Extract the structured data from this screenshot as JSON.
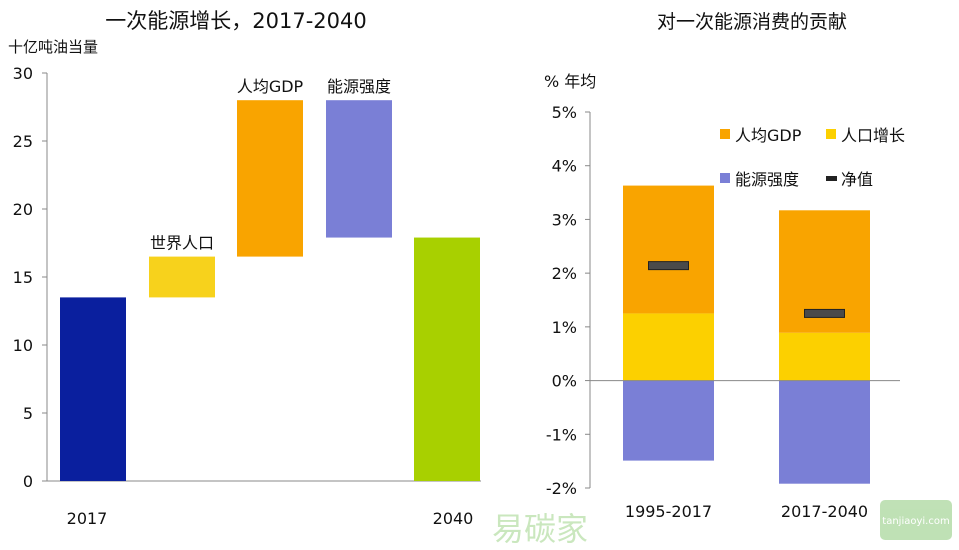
{
  "chart_data": [
    {
      "type": "bar",
      "subtype": "waterfall",
      "title": "一次能源增长，2017-2040",
      "ylabel": "十亿吨油当量",
      "ylim": [
        0,
        30
      ],
      "yticks": [
        0,
        5,
        10,
        15,
        20,
        25,
        30
      ],
      "grid": false,
      "categories": [
        "2017",
        "世界人口",
        "人均GDP",
        "能源强度",
        "2040"
      ],
      "tick_labels": [
        "2017",
        "",
        "",
        "",
        "2040"
      ],
      "bar_labels": [
        "",
        "世界人口",
        "人均GDP",
        "能源强度",
        ""
      ],
      "ranges": [
        [
          0,
          13.5
        ],
        [
          13.5,
          16.5
        ],
        [
          16.5,
          28.0
        ],
        [
          17.9,
          28.0
        ],
        [
          0,
          17.9
        ]
      ],
      "colors": [
        "#0a1f9e",
        "#f7d21c",
        "#f9a400",
        "#7a7fd6",
        "#a8d000"
      ]
    },
    {
      "type": "bar",
      "subtype": "stacked",
      "title": "对一次能源消费的贡献",
      "ylabel": "% 年均",
      "ylim": [
        -2,
        5
      ],
      "yticks": [
        "-2%",
        "-1%",
        "0%",
        "1%",
        "2%",
        "3%",
        "4%",
        "5%"
      ],
      "grid": false,
      "legend_position": "top-right",
      "categories": [
        "1995-2017",
        "2017-2040"
      ],
      "series": [
        {
          "name": "人均GDP",
          "values": [
            2.38,
            2.28
          ],
          "color": "#f9a400"
        },
        {
          "name": "人口增长",
          "values": [
            1.25,
            0.89
          ],
          "color": "#fcd000"
        },
        {
          "name": "能源强度",
          "values": [
            -1.49,
            -1.92
          ],
          "color": "#7a7fd6"
        },
        {
          "name": "净值",
          "values": [
            2.14,
            1.25
          ],
          "color": "#4a4a4a",
          "marker": "dash"
        }
      ]
    }
  ],
  "watermark": {
    "text": "易碳家",
    "site": "tanjiaoyi.com"
  }
}
